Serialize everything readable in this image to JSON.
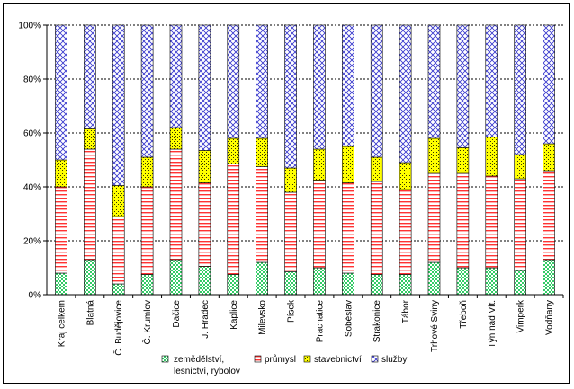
{
  "chart_data": {
    "type": "bar",
    "stacked": true,
    "percent_stacked": true,
    "categories": [
      "Kraj celkem",
      "Blatná",
      "Č. Budějovice",
      "Č. Krumlov",
      "Dačice",
      "J. Hradec",
      "Kaplice",
      "Milevsko",
      "Písek",
      "Prachatice",
      "Soběslav",
      "Strakonice",
      "Tábor",
      "Trhové Sviny",
      "Třeboň",
      "Týn nad Vlt.",
      "Vimperk",
      "Vodňany"
    ],
    "series": [
      {
        "name": "zemědělství, lesnictví, rybolov",
        "color": "#33cc66",
        "values": [
          8,
          13,
          4,
          7.5,
          13,
          10.5,
          7.5,
          12,
          8.5,
          10,
          8,
          7.5,
          7.5,
          12,
          10,
          10,
          9,
          13
        ]
      },
      {
        "name": "průmysl",
        "color": "#ff3333",
        "values": [
          32,
          41,
          25,
          32.5,
          41,
          31,
          41,
          35.5,
          29.5,
          32.5,
          33.5,
          34.5,
          31.5,
          33,
          35,
          34,
          34,
          33
        ]
      },
      {
        "name": "stavebnictví",
        "color": "#ffff00",
        "values": [
          10,
          7.5,
          11.5,
          11,
          8,
          12,
          9.5,
          10.5,
          9,
          11.5,
          13.5,
          9,
          10,
          13,
          9.5,
          14.5,
          9,
          10
        ]
      },
      {
        "name": "služby",
        "color": "#3333cc",
        "values": [
          50,
          38.5,
          59.5,
          49,
          38,
          46.5,
          42,
          42,
          53,
          46,
          45,
          49,
          51,
          42,
          45.5,
          41.5,
          48,
          44
        ]
      }
    ],
    "y_ticks": [
      "0%",
      "20%",
      "40%",
      "60%",
      "80%",
      "100%"
    ],
    "ylim": [
      0,
      100
    ],
    "grid": true,
    "legend_position": "bottom",
    "legend_labels": {
      "zemedelstvi_line1": "zemědělství,",
      "zemedelstvi_line2": "lesnictví, rybolov",
      "prumysl": "průmysl",
      "stavebnictvi": "stavebnictví",
      "sluzby": "služby"
    }
  }
}
